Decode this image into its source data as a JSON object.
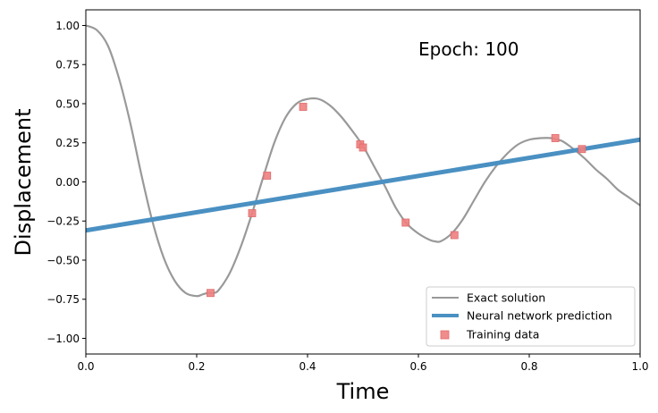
{
  "chart_data": {
    "type": "line",
    "title": "",
    "xlabel": "Time",
    "ylabel": "Displacement",
    "xlim": [
      0,
      1
    ],
    "ylim": [
      -1.1,
      1.1
    ],
    "xticks": [
      0.0,
      0.2,
      0.4,
      0.6,
      0.8,
      1.0
    ],
    "xtick_labels": [
      "0.0",
      "0.2",
      "0.4",
      "0.6",
      "0.8",
      "1.0"
    ],
    "yticks": [
      -1.0,
      -0.75,
      -0.5,
      -0.25,
      0.0,
      0.25,
      0.5,
      0.75,
      1.0
    ],
    "ytick_labels": [
      "−1.00",
      "−0.75",
      "−0.50",
      "−0.25",
      "0.00",
      "0.25",
      "0.50",
      "0.75",
      "1.00"
    ],
    "grid": false,
    "legend_position": "bottom-right",
    "annotation": "Epoch: 100",
    "series": [
      {
        "name": "Exact solution",
        "kind": "line",
        "color": "#999999",
        "x": [
          0.0,
          0.02,
          0.04,
          0.06,
          0.08,
          0.1,
          0.12,
          0.14,
          0.16,
          0.18,
          0.2,
          0.21,
          0.22,
          0.23,
          0.24,
          0.26,
          0.28,
          0.3,
          0.32,
          0.34,
          0.36,
          0.38,
          0.4,
          0.42,
          0.44,
          0.46,
          0.48,
          0.5,
          0.52,
          0.54,
          0.56,
          0.58,
          0.6,
          0.62,
          0.63,
          0.64,
          0.66,
          0.68,
          0.7,
          0.72,
          0.74,
          0.76,
          0.78,
          0.8,
          0.82,
          0.84,
          0.85,
          0.86,
          0.88,
          0.9,
          0.92,
          0.94,
          0.96,
          0.98,
          1.0
        ],
        "y": [
          1.0,
          0.97,
          0.87,
          0.66,
          0.38,
          0.05,
          -0.25,
          -0.48,
          -0.63,
          -0.71,
          -0.73,
          -0.72,
          -0.71,
          -0.71,
          -0.69,
          -0.58,
          -0.41,
          -0.2,
          0.03,
          0.25,
          0.41,
          0.5,
          0.53,
          0.53,
          0.49,
          0.42,
          0.33,
          0.23,
          0.1,
          -0.03,
          -0.17,
          -0.27,
          -0.33,
          -0.37,
          -0.38,
          -0.38,
          -0.33,
          -0.24,
          -0.12,
          0.0,
          0.1,
          0.18,
          0.24,
          0.27,
          0.28,
          0.28,
          0.27,
          0.26,
          0.21,
          0.15,
          0.08,
          0.02,
          -0.05,
          -0.1,
          -0.15
        ]
      },
      {
        "name": "Neural network prediction",
        "kind": "line",
        "color": "#4a90c2",
        "x": [
          0.0,
          1.0
        ],
        "y": [
          -0.31,
          0.27
        ]
      },
      {
        "name": "Training data",
        "kind": "scatter",
        "marker": "square",
        "color": "#f08080",
        "x": [
          0.225,
          0.3,
          0.327,
          0.392,
          0.495,
          0.5,
          0.577,
          0.665,
          0.847,
          0.895
        ],
        "y": [
          -0.71,
          -0.2,
          0.04,
          0.48,
          0.24,
          0.22,
          -0.26,
          -0.34,
          0.28,
          0.21
        ]
      }
    ]
  }
}
